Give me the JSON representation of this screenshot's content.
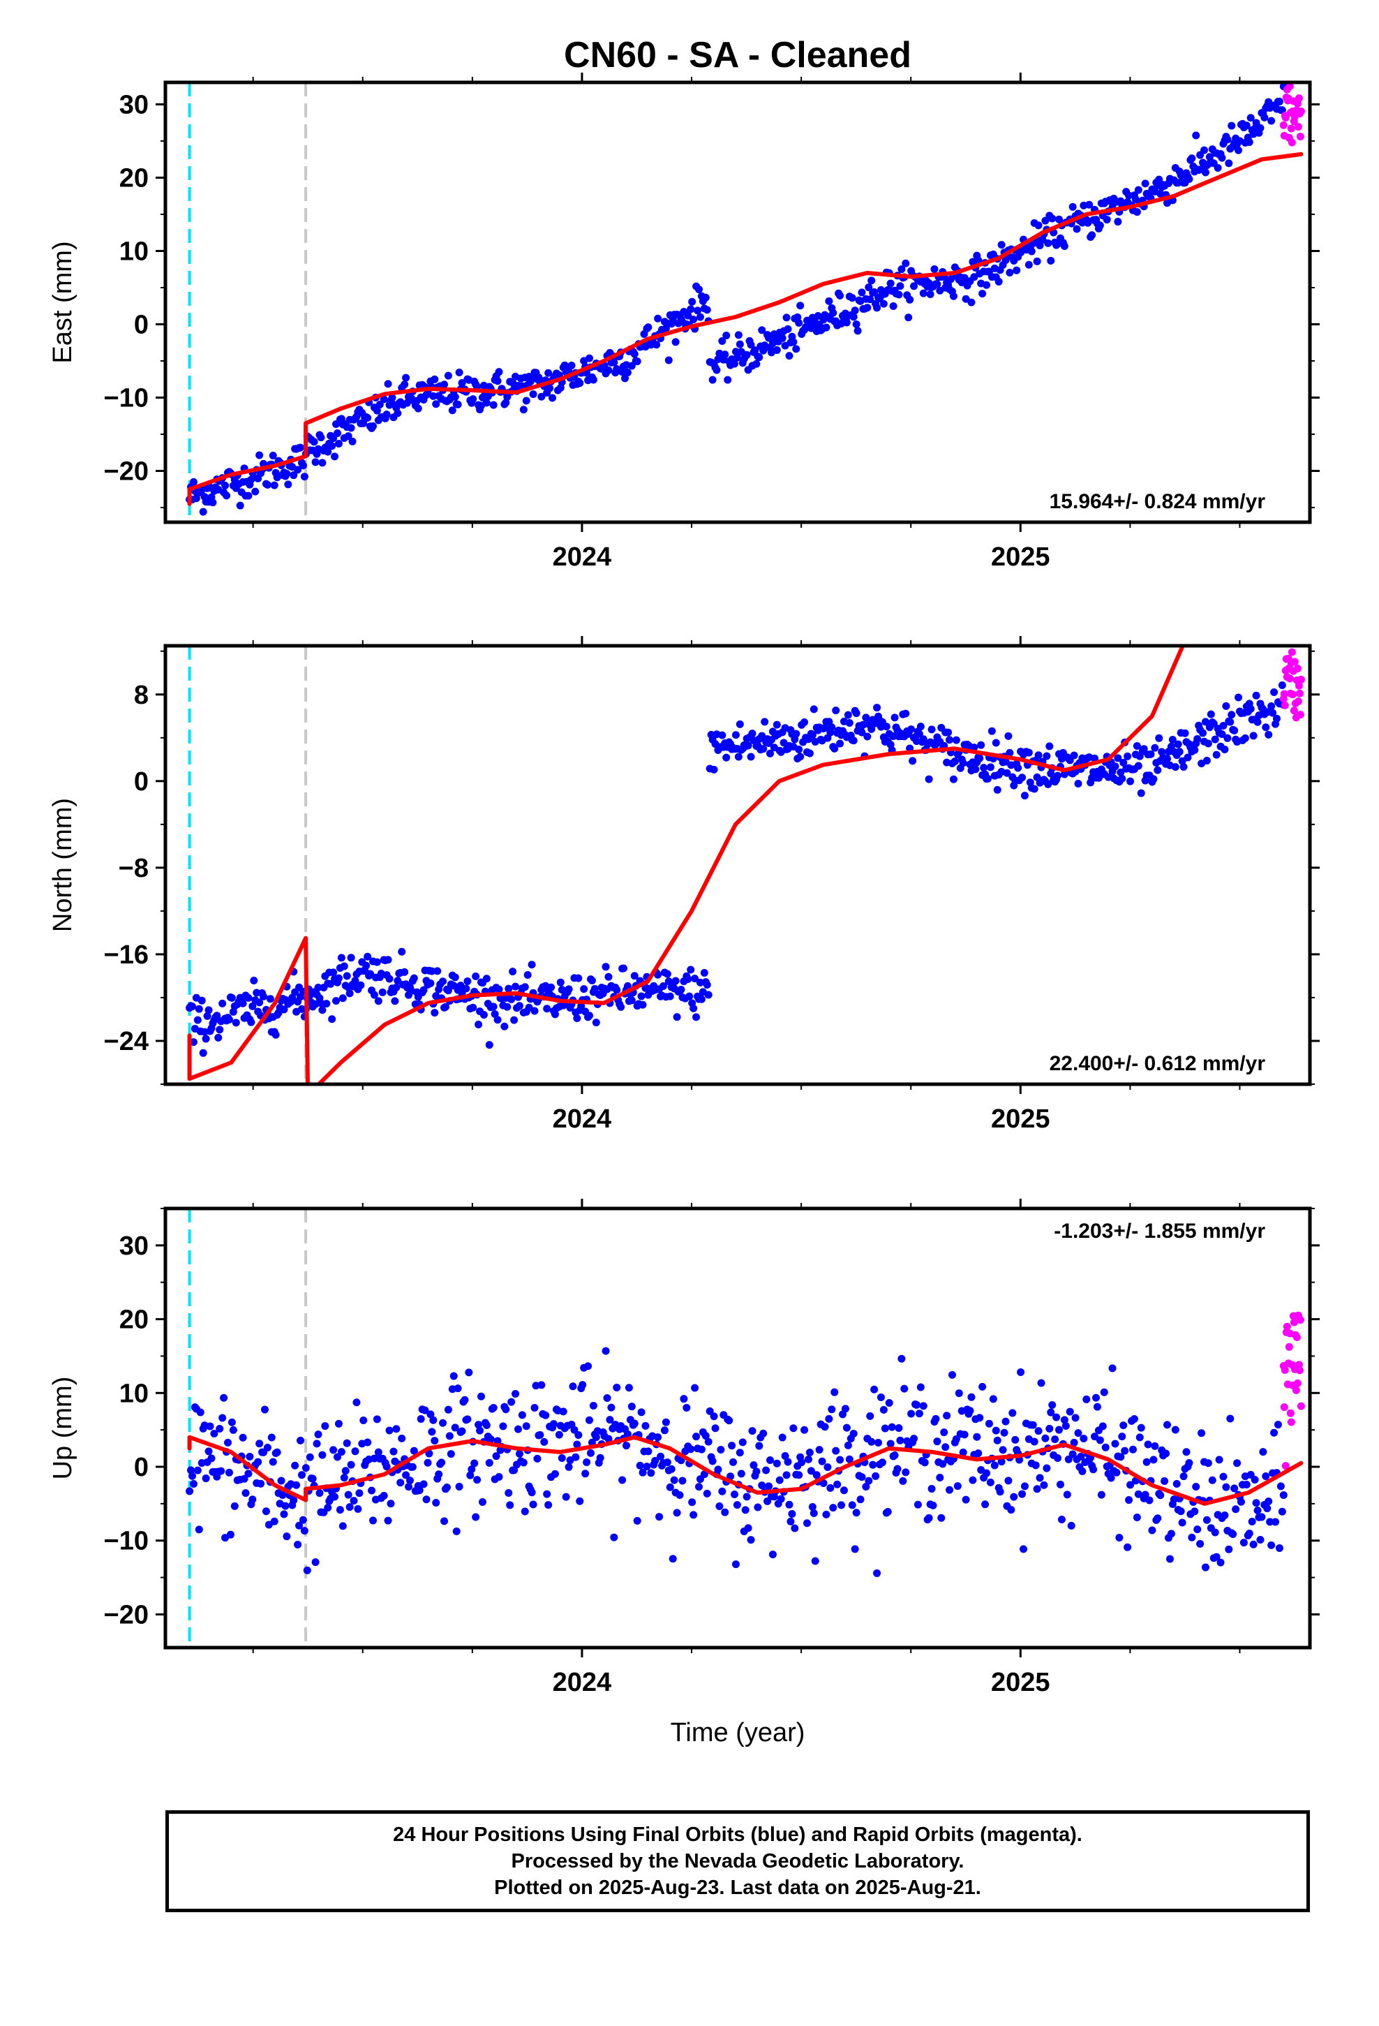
{
  "title": "CN60  - SA - Cleaned",
  "xlabel": "Time (year)",
  "colors": {
    "final_orbits": "#0000ff",
    "rapid_orbits": "#ff00ff",
    "model_fit": "#ff0000",
    "equipment_change_line": "#00e5ff",
    "antenna_change_line": "#c8c8c8"
  },
  "footer": {
    "line1": "24 Hour Positions Using Final Orbits (blue) and Rapid Orbits (magenta).",
    "line2": "Processed by the Nevada Geodetic Laboratory.",
    "line3": "Plotted on 2025-Aug-23. Last data on 2025-Aug-21."
  },
  "chart_data": [
    {
      "type": "scatter",
      "component": "east",
      "ylabel": "East (mm)",
      "x_range": [
        2023.05,
        2025.66
      ],
      "ylim": [
        -27,
        33
      ],
      "yticks": [
        -20,
        -10,
        0,
        10,
        20,
        30
      ],
      "xticks": [
        2024,
        2025
      ],
      "xtick_labels": [
        "2024",
        "2025"
      ],
      "event_lines": [
        {
          "x": 2023.105,
          "style": "cyan-dashed"
        },
        {
          "x": 2023.37,
          "style": "gray-dashed"
        }
      ],
      "rate_text": "15.964+/- 0.824 mm/yr",
      "rate_position": "bottom-right",
      "model_curve": [
        [
          2023.105,
          -24.5
        ],
        [
          2023.105,
          -22.5
        ],
        [
          2023.2,
          -20.5
        ],
        [
          2023.3,
          -19.3
        ],
        [
          2023.37,
          -18.0
        ],
        [
          2023.37,
          -13.5
        ],
        [
          2023.45,
          -11.5
        ],
        [
          2023.55,
          -9.5
        ],
        [
          2023.65,
          -8.8
        ],
        [
          2023.75,
          -9.0
        ],
        [
          2023.85,
          -9.3
        ],
        [
          2023.95,
          -7.5
        ],
        [
          2024.05,
          -5.0
        ],
        [
          2024.15,
          -2.0
        ],
        [
          2024.25,
          -0.3
        ],
        [
          2024.35,
          1.0
        ],
        [
          2024.45,
          3.0
        ],
        [
          2024.55,
          5.5
        ],
        [
          2024.65,
          7.0
        ],
        [
          2024.75,
          6.5
        ],
        [
          2024.85,
          7.0
        ],
        [
          2024.95,
          9.0
        ],
        [
          2025.05,
          12.5
        ],
        [
          2025.15,
          15.0
        ],
        [
          2025.25,
          16.0
        ],
        [
          2025.35,
          17.5
        ],
        [
          2025.45,
          20.0
        ],
        [
          2025.55,
          22.5
        ],
        [
          2025.64,
          23.2
        ]
      ],
      "series": [
        {
          "name": "",
          "orbit": "final",
          "color": "#0000ff",
          "x_start": 2023.105,
          "x_end": 2025.6,
          "n": 800,
          "noise": 1.3,
          "trend": [
            [
              2023.105,
              -23.5
            ],
            [
              2023.37,
              -18.5
            ],
            [
              2023.37,
              -17.5
            ],
            [
              2023.6,
              -10.0
            ],
            [
              2023.9,
              -8.5
            ],
            [
              2024.1,
              -4.5
            ],
            [
              2024.29,
              3.5
            ],
            [
              2024.29,
              -6.0
            ],
            [
              2024.5,
              -1.0
            ],
            [
              2024.7,
              5.0
            ],
            [
              2024.9,
              6.5
            ],
            [
              2025.1,
              13.0
            ],
            [
              2025.3,
              18.0
            ],
            [
              2025.5,
              25.0
            ],
            [
              2025.6,
              30.0
            ]
          ]
        },
        {
          "name": "",
          "orbit": "rapid",
          "color": "#ff00ff",
          "x_start": 2025.6,
          "x_end": 2025.64,
          "n": 26,
          "noise": 2.5,
          "trend": [
            [
              2025.6,
              29.5
            ],
            [
              2025.64,
              27.5
            ]
          ]
        }
      ]
    },
    {
      "type": "scatter",
      "component": "north",
      "ylabel": "North (mm)",
      "x_range": [
        2023.05,
        2025.66
      ],
      "ylim": [
        -28,
        12.5
      ],
      "yticks": [
        -24,
        -16,
        -8,
        0,
        8
      ],
      "xticks": [
        2024,
        2025
      ],
      "xtick_labels": [
        "2024",
        "2025"
      ],
      "event_lines": [
        {
          "x": 2023.105,
          "style": "cyan-dashed"
        },
        {
          "x": 2023.37,
          "style": "gray-dashed"
        }
      ],
      "rate_text": "22.400+/- 0.612 mm/yr",
      "rate_position": "bottom-right",
      "model_curve": [
        [
          2023.105,
          -23.5
        ],
        [
          2023.105,
          -27.5
        ],
        [
          2023.2,
          -26.0
        ],
        [
          2023.3,
          -20.5
        ],
        [
          2023.37,
          -14.5
        ],
        [
          2023.375,
          -29.0
        ],
        [
          2023.45,
          -26.0
        ],
        [
          2023.55,
          -22.5
        ],
        [
          2023.65,
          -20.5
        ],
        [
          2023.75,
          -19.8
        ],
        [
          2023.85,
          -19.6
        ],
        [
          2023.95,
          -20.3
        ],
        [
          2024.05,
          -20.5
        ],
        [
          2024.15,
          -18.5
        ],
        [
          2024.25,
          -12.0
        ],
        [
          2024.35,
          -4.0
        ],
        [
          2024.45,
          0.0
        ],
        [
          2024.55,
          1.5
        ],
        [
          2024.7,
          2.5
        ],
        [
          2024.85,
          3.0
        ],
        [
          2025.0,
          2.0
        ],
        [
          2025.1,
          1.0
        ],
        [
          2025.2,
          2.0
        ],
        [
          2025.3,
          6.0
        ],
        [
          2025.37,
          12.5
        ]
      ],
      "series": [
        {
          "name": "",
          "orbit": "final",
          "color": "#0000ff",
          "x_start": 2023.105,
          "x_end": 2025.6,
          "n": 800,
          "noise": 1.1,
          "trend": [
            [
              2023.105,
              -22.5
            ],
            [
              2023.37,
              -20.0
            ],
            [
              2023.5,
              -17.5
            ],
            [
              2023.7,
              -19.5
            ],
            [
              2023.9,
              -20.5
            ],
            [
              2024.1,
              -19.5
            ],
            [
              2024.29,
              -19.5
            ],
            [
              2024.29,
              3.0
            ],
            [
              2024.5,
              4.0
            ],
            [
              2024.65,
              5.5
            ],
            [
              2024.85,
              2.5
            ],
            [
              2025.1,
              1.0
            ],
            [
              2025.3,
              1.0
            ],
            [
              2025.45,
              4.5
            ],
            [
              2025.6,
              7.0
            ]
          ]
        },
        {
          "name": "",
          "orbit": "rapid",
          "color": "#ff00ff",
          "x_start": 2025.6,
          "x_end": 2025.64,
          "n": 26,
          "noise": 1.5,
          "trend": [
            [
              2025.6,
              9.5
            ],
            [
              2025.64,
              8.5
            ]
          ]
        }
      ]
    },
    {
      "type": "scatter",
      "component": "up",
      "ylabel": "Up (mm)",
      "x_range": [
        2023.05,
        2025.66
      ],
      "ylim": [
        -24.5,
        35
      ],
      "yticks": [
        -20,
        -10,
        0,
        10,
        20,
        30
      ],
      "xticks": [
        2024,
        2025
      ],
      "xtick_labels": [
        "2024",
        "2025"
      ],
      "event_lines": [
        {
          "x": 2023.105,
          "style": "cyan-dashed"
        },
        {
          "x": 2023.37,
          "style": "gray-dashed"
        }
      ],
      "rate_text": "-1.203+/- 1.855 mm/yr",
      "rate_position": "top-right",
      "model_curve": [
        [
          2023.105,
          2.5
        ],
        [
          2023.105,
          4.0
        ],
        [
          2023.2,
          2.0
        ],
        [
          2023.3,
          -2.5
        ],
        [
          2023.37,
          -4.5
        ],
        [
          2023.37,
          -3.0
        ],
        [
          2023.45,
          -2.5
        ],
        [
          2023.55,
          -1.0
        ],
        [
          2023.65,
          2.5
        ],
        [
          2023.75,
          3.5
        ],
        [
          2023.85,
          2.5
        ],
        [
          2023.95,
          2.0
        ],
        [
          2024.05,
          3.0
        ],
        [
          2024.12,
          4.0
        ],
        [
          2024.2,
          2.5
        ],
        [
          2024.3,
          -1.0
        ],
        [
          2024.4,
          -3.5
        ],
        [
          2024.5,
          -3.0
        ],
        [
          2024.6,
          0.0
        ],
        [
          2024.7,
          2.5
        ],
        [
          2024.8,
          2.0
        ],
        [
          2024.9,
          1.0
        ],
        [
          2025.0,
          1.5
        ],
        [
          2025.1,
          3.0
        ],
        [
          2025.2,
          1.0
        ],
        [
          2025.3,
          -2.5
        ],
        [
          2025.42,
          -5.0
        ],
        [
          2025.52,
          -3.5
        ],
        [
          2025.64,
          0.5
        ]
      ],
      "series": [
        {
          "name": "",
          "orbit": "final",
          "color": "#0000ff",
          "x_start": 2023.105,
          "x_end": 2025.6,
          "n": 800,
          "noise": 4.5,
          "trend": [
            [
              2023.105,
              2.0
            ],
            [
              2023.37,
              -4.0
            ],
            [
              2023.7,
              3.0
            ],
            [
              2024.1,
              4.0
            ],
            [
              2024.4,
              -2.5
            ],
            [
              2024.7,
              3.0
            ],
            [
              2025.0,
              2.0
            ],
            [
              2025.15,
              3.0
            ],
            [
              2025.4,
              -5.5
            ],
            [
              2025.6,
              -6.0
            ]
          ]
        },
        {
          "name": "",
          "orbit": "rapid",
          "color": "#ff00ff",
          "x_start": 2025.6,
          "x_end": 2025.64,
          "n": 26,
          "noise": 5.5,
          "trend": [
            [
              2025.6,
              13.0
            ],
            [
              2025.64,
              15.0
            ]
          ]
        }
      ]
    }
  ]
}
